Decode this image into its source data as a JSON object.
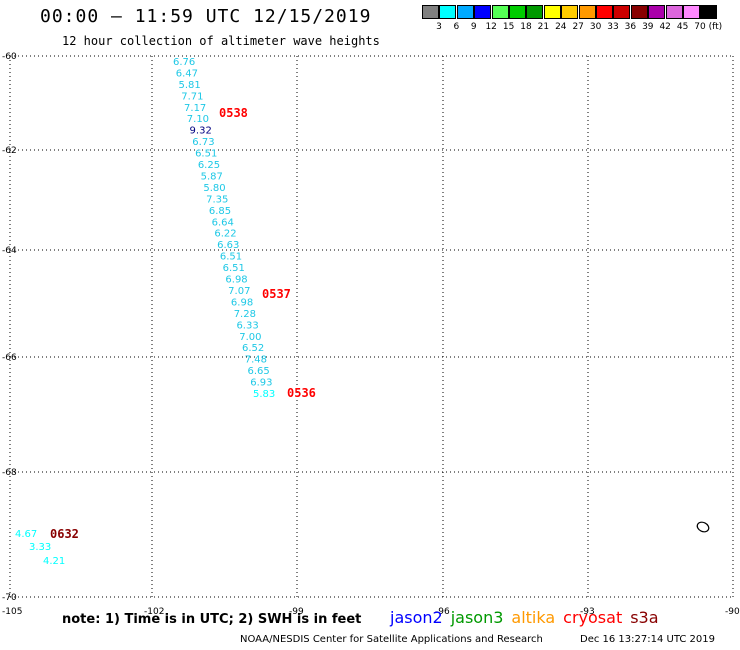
{
  "header": {
    "title": "00:00 – 11:59 UTC 12/15/2019",
    "subtitle": "12 hour collection of altimeter wave heights"
  },
  "legend": {
    "unit": "(ft)",
    "items": [
      {
        "color": "#808080",
        "label": "3"
      },
      {
        "color": "#00ffff",
        "label": "6"
      },
      {
        "color": "#00aaff",
        "label": "9"
      },
      {
        "color": "#0000ff",
        "label": "12"
      },
      {
        "color": "#55ff55",
        "label": "15"
      },
      {
        "color": "#00cc00",
        "label": "18"
      },
      {
        "color": "#009900",
        "label": "21"
      },
      {
        "color": "#ffff00",
        "label": "24"
      },
      {
        "color": "#ffcc00",
        "label": "27"
      },
      {
        "color": "#ff9900",
        "label": "30"
      },
      {
        "color": "#ff0000",
        "label": "33"
      },
      {
        "color": "#cc0000",
        "label": "36"
      },
      {
        "color": "#880000",
        "label": "39"
      },
      {
        "color": "#aa00aa",
        "label": "42"
      },
      {
        "color": "#dd66dd",
        "label": "45"
      },
      {
        "color": "#ff88ff",
        "label": "70"
      },
      {
        "color": "#000000",
        "label": ""
      }
    ]
  },
  "map": {
    "lat_labels": [
      "-60",
      "-62",
      "-64",
      "-66",
      "-68",
      "-70"
    ],
    "lon_labels": [
      "-105",
      "-102",
      "-99",
      "-96",
      "-93",
      "-90"
    ],
    "track": [
      {
        "v": "6.76",
        "c": "#1ec8e6"
      },
      {
        "v": "6.47",
        "c": "#1ec8e6"
      },
      {
        "v": "5.81",
        "c": "#1ec8e6"
      },
      {
        "v": "7.71",
        "c": "#1ec8e6"
      },
      {
        "v": "7.17",
        "c": "#1ec8e6"
      },
      {
        "v": "7.10",
        "c": "#1ec8e6"
      },
      {
        "v": "9.32",
        "c": "#000080"
      },
      {
        "v": "6.73",
        "c": "#1ec8e6"
      },
      {
        "v": "6.51",
        "c": "#1ec8e6"
      },
      {
        "v": "6.25",
        "c": "#1ec8e6"
      },
      {
        "v": "5.87",
        "c": "#1ec8e6"
      },
      {
        "v": "5.80",
        "c": "#1ec8e6"
      },
      {
        "v": "7.35",
        "c": "#1ec8e6"
      },
      {
        "v": "6.85",
        "c": "#1ec8e6"
      },
      {
        "v": "6.64",
        "c": "#1ec8e6"
      },
      {
        "v": "6.22",
        "c": "#1ec8e6"
      },
      {
        "v": "6.63",
        "c": "#1ec8e6"
      },
      {
        "v": "6.51",
        "c": "#1ec8e6"
      },
      {
        "v": "6.51",
        "c": "#1ec8e6"
      },
      {
        "v": "6.98",
        "c": "#1ec8e6"
      },
      {
        "v": "7.07",
        "c": "#1ec8e6"
      },
      {
        "v": "6.98",
        "c": "#1ec8e6"
      },
      {
        "v": "7.28",
        "c": "#1ec8e6"
      },
      {
        "v": "6.33",
        "c": "#1ec8e6"
      },
      {
        "v": "7.00",
        "c": "#1ec8e6"
      },
      {
        "v": "6.52",
        "c": "#1ec8e6"
      },
      {
        "v": "7.48",
        "c": "#1ec8e6"
      },
      {
        "v": "6.65",
        "c": "#1ec8e6"
      },
      {
        "v": "6.93",
        "c": "#1ec8e6"
      },
      {
        "v": "5.83",
        "c": "#00ffff"
      }
    ],
    "track_times": [
      {
        "label": "0538",
        "color": "#ff0000"
      },
      {
        "label": "0537",
        "color": "#ff0000"
      },
      {
        "label": "0536",
        "color": "#ff0000"
      }
    ],
    "track2": [
      {
        "v": "4.67",
        "c": "#00ffff"
      },
      {
        "v": "3.33",
        "c": "#00ffff"
      },
      {
        "v": "4.21",
        "c": "#00ffff"
      }
    ],
    "track2_time": {
      "label": "0632",
      "color": "#880000"
    }
  },
  "footer": {
    "note": "note: 1) Time is in UTC; 2) SWH is in feet",
    "satellites": [
      {
        "name": "jason2",
        "color": "#0000ff"
      },
      {
        "name": "jason3",
        "color": "#009900"
      },
      {
        "name": "altika",
        "color": "#ff9900"
      },
      {
        "name": "cryosat",
        "color": "#ff0000"
      },
      {
        "name": "s3a",
        "color": "#880000"
      }
    ],
    "credit": "NOAA/NESDIS Center for Satellite Applications and Research",
    "timestamp": "Dec 16 13:27:14 UTC 2019"
  }
}
